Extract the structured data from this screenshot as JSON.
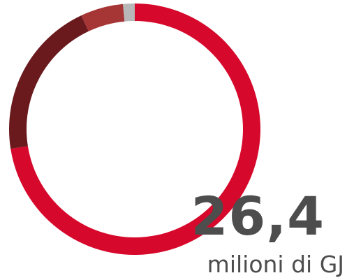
{
  "total": {
    "value": "26,4",
    "unit": "milioni di GJ"
  },
  "chart_data": {
    "type": "pie",
    "variant": "donut",
    "values": [
      72.5,
      20.5,
      5.5,
      1.5
    ],
    "colors": [
      "#d6082b",
      "#6a1a1d",
      "#a63536",
      "#b8b8b8"
    ],
    "legend": "none"
  }
}
